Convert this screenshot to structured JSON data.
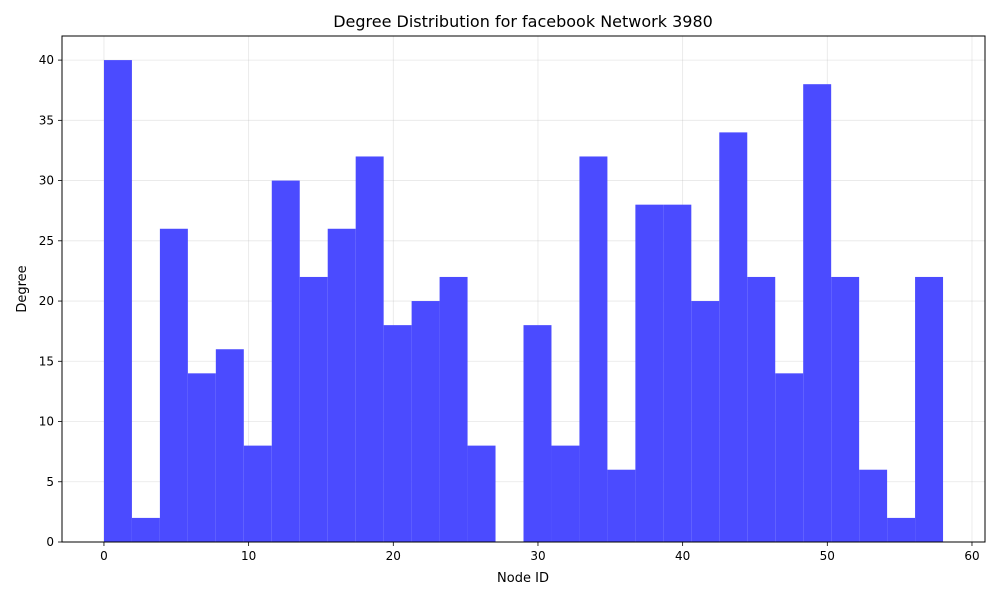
{
  "chart_data": {
    "type": "bar",
    "title": "Degree Distribution for facebook Network 3980",
    "xlabel": "Node ID",
    "ylabel": "Degree",
    "xlim": [
      -2.9,
      60.9
    ],
    "ylim": [
      0,
      42
    ],
    "xticks": [
      0,
      10,
      20,
      30,
      40,
      50,
      60
    ],
    "yticks": [
      0,
      5,
      10,
      15,
      20,
      25,
      30,
      35,
      40
    ],
    "bin_width": 1.9333,
    "grid": true,
    "bar_color": "#4b4bff",
    "bins": [
      {
        "x0": 0.0,
        "value": 40
      },
      {
        "x0": 1.9333,
        "value": 2
      },
      {
        "x0": 3.8667,
        "value": 26
      },
      {
        "x0": 5.8,
        "value": 14
      },
      {
        "x0": 7.7333,
        "value": 16
      },
      {
        "x0": 9.6667,
        "value": 8
      },
      {
        "x0": 11.6,
        "value": 30
      },
      {
        "x0": 13.5333,
        "value": 22
      },
      {
        "x0": 15.4667,
        "value": 26
      },
      {
        "x0": 17.4,
        "value": 32
      },
      {
        "x0": 19.3333,
        "value": 18
      },
      {
        "x0": 21.2667,
        "value": 20
      },
      {
        "x0": 23.2,
        "value": 22
      },
      {
        "x0": 25.1333,
        "value": 8
      },
      {
        "x0": 27.0667,
        "value": 0
      },
      {
        "x0": 29.0,
        "value": 18
      },
      {
        "x0": 30.9333,
        "value": 8
      },
      {
        "x0": 32.8667,
        "value": 32
      },
      {
        "x0": 34.8,
        "value": 6
      },
      {
        "x0": 36.7333,
        "value": 28
      },
      {
        "x0": 38.6667,
        "value": 28
      },
      {
        "x0": 40.6,
        "value": 20
      },
      {
        "x0": 42.5333,
        "value": 34
      },
      {
        "x0": 44.4667,
        "value": 22
      },
      {
        "x0": 46.4,
        "value": 14
      },
      {
        "x0": 48.3333,
        "value": 38
      },
      {
        "x0": 50.2667,
        "value": 22
      },
      {
        "x0": 52.2,
        "value": 6
      },
      {
        "x0": 54.1333,
        "value": 2
      },
      {
        "x0": 56.0667,
        "value": 22
      }
    ]
  }
}
